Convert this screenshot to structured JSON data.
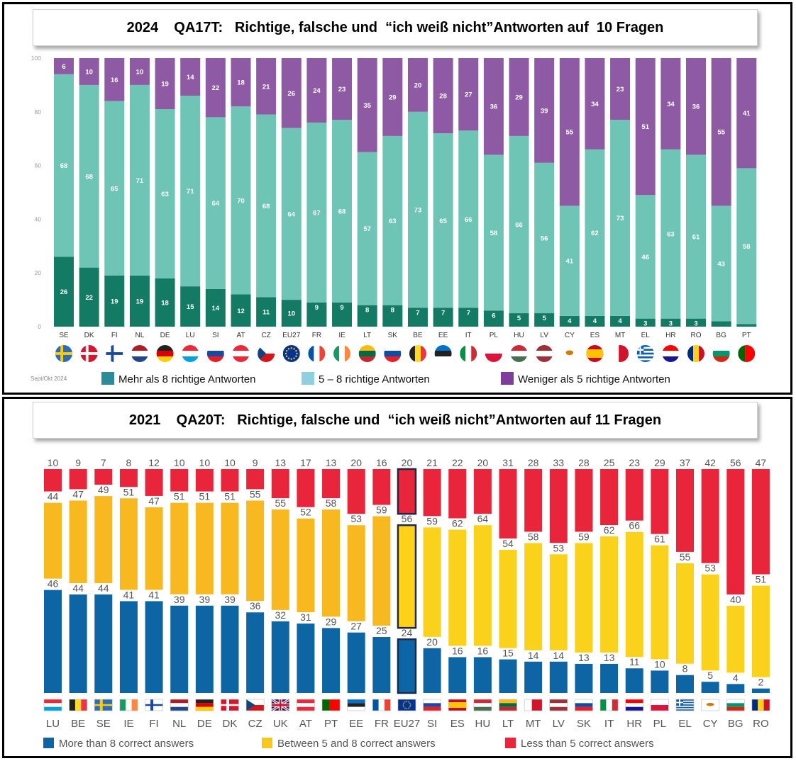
{
  "chart_data": [
    {
      "type": "bar",
      "stacked": true,
      "title": "2024    QA17T:   Richtige, falsche und  “ich weiß nicht”Antworten auf  10 Fragen",
      "note": "Sept/Okt 2024",
      "ylim": [
        0,
        100
      ],
      "yticks": [
        "0",
        "20",
        "40",
        "60",
        "80",
        "100"
      ],
      "grid": false,
      "legend_position": "bottom",
      "categories": [
        "SE",
        "DK",
        "FI",
        "NL",
        "DE",
        "LU",
        "SI",
        "AT",
        "CZ",
        "EU27",
        "FR",
        "IE",
        "LT",
        "SK",
        "BE",
        "EE",
        "IT",
        "PL",
        "HU",
        "LV",
        "CY",
        "ES",
        "MT",
        "EL",
        "HR",
        "RO",
        "BG",
        "PT"
      ],
      "series": [
        {
          "name": "Mehr als 8 richtige Antworten",
          "color": "#137a63",
          "values": [
            26,
            22,
            19,
            19,
            18,
            15,
            14,
            12,
            11,
            10,
            9,
            9,
            8,
            8,
            7,
            7,
            7,
            6,
            5,
            5,
            4,
            4,
            4,
            3,
            3,
            3,
            2,
            1
          ],
          "labels": [
            "26",
            "22",
            "19",
            "19",
            "18",
            "15",
            "14",
            "12",
            "11",
            "10",
            "9",
            "9",
            "8",
            "8",
            "7",
            "7",
            "7",
            "6",
            "5",
            "5",
            "4",
            "4",
            "4",
            "3",
            "3",
            "3",
            "",
            ""
          ]
        },
        {
          "name": "5 – 8  richtige Antworten",
          "color": "#6ec4b5",
          "values": [
            68,
            68,
            65,
            71,
            63,
            71,
            64,
            70,
            68,
            64,
            67,
            68,
            57,
            63,
            73,
            65,
            66,
            58,
            66,
            56,
            41,
            62,
            73,
            46,
            63,
            61,
            43,
            58
          ],
          "labels": [
            "68",
            "68",
            "65",
            "71",
            "63",
            "71",
            "64",
            "70",
            "68",
            "64",
            "67",
            "68",
            "57",
            "63",
            "73",
            "65",
            "66",
            "58",
            "66",
            "56",
            "41",
            "62",
            "73",
            "46",
            "63",
            "61",
            "43",
            "58"
          ]
        },
        {
          "name": "Weniger als 5 richtige Antworten",
          "color": "#8e5aa4",
          "values": [
            6,
            10,
            16,
            10,
            19,
            14,
            22,
            18,
            21,
            26,
            24,
            23,
            35,
            29,
            20,
            28,
            27,
            36,
            29,
            39,
            55,
            34,
            23,
            51,
            34,
            36,
            55,
            41
          ],
          "labels": [
            "6",
            "10",
            "16",
            "10",
            "19",
            "14",
            "22",
            "18",
            "21",
            "26",
            "24",
            "23",
            "35",
            "29",
            "20",
            "28",
            "27",
            "36",
            "29",
            "39",
            "55",
            "34",
            "23",
            "51",
            "34",
            "36",
            "55",
            "41"
          ]
        }
      ],
      "legend_colors": [
        "#2a8c98",
        "#8ed0df",
        "#7e3c9c"
      ]
    },
    {
      "type": "bar",
      "stacked": true,
      "title": "2021    QA20T:   Richtige, falsche und  “ich weiß nicht”Antworten auf 11 Fragen",
      "grid": false,
      "legend_position": "bottom",
      "highlight": "EU27",
      "categories": [
        "LU",
        "BE",
        "SE",
        "IE",
        "FI",
        "NL",
        "DE",
        "DK",
        "CZ",
        "UK",
        "AT",
        "PT",
        "EE",
        "FR",
        "EU27",
        "SI",
        "ES",
        "HU",
        "LT",
        "MT",
        "LV",
        "SK",
        "IT",
        "HR",
        "PL",
        "EL",
        "CY",
        "BG",
        "RO"
      ],
      "series": [
        {
          "name": "More than 8 correct answers",
          "color": "#0e65a3",
          "values": [
            46,
            44,
            44,
            41,
            41,
            39,
            39,
            39,
            36,
            32,
            31,
            29,
            27,
            25,
            24,
            20,
            16,
            16,
            15,
            14,
            14,
            13,
            13,
            11,
            10,
            8,
            5,
            4,
            2
          ]
        },
        {
          "name": "Between 5 and 8 correct answers",
          "color": "#f8b820",
          "values": [
            44,
            47,
            49,
            51,
            47,
            51,
            51,
            51,
            55,
            55,
            52,
            58,
            53,
            59,
            56,
            59,
            62,
            64,
            54,
            58,
            53,
            59,
            62,
            66,
            61,
            55,
            53,
            40,
            51
          ]
        },
        {
          "name": "Less than 5 correct answers",
          "color": "#e8253a",
          "values": [
            10,
            9,
            7,
            8,
            12,
            10,
            10,
            10,
            9,
            13,
            17,
            13,
            20,
            16,
            20,
            21,
            22,
            20,
            31,
            28,
            33,
            28,
            25,
            23,
            29,
            37,
            42,
            56,
            47
          ]
        }
      ]
    }
  ]
}
